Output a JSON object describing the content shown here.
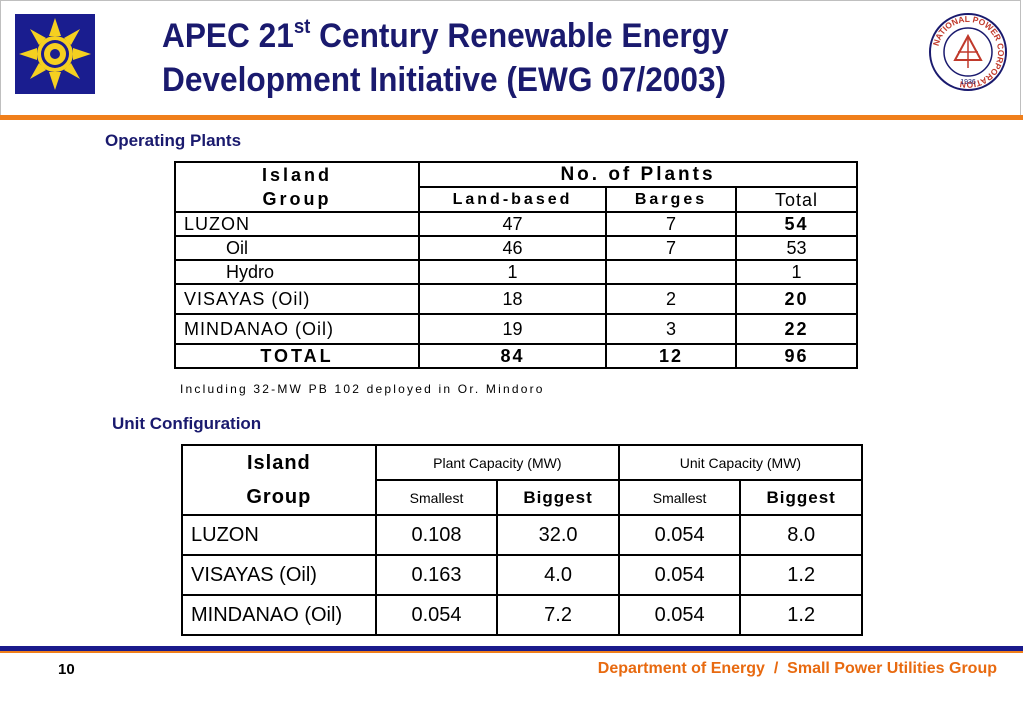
{
  "header": {
    "title_line1_pre": "APEC 21",
    "title_line1_sup": "st",
    "title_line1_post": " Century Renewable Energy",
    "title_line2": "Development Initiative (EWG 07/2003)",
    "left_logo": "department-of-energy-seal",
    "right_logo": "national-power-corporation-logo",
    "right_logo_text": "NATIONAL POWER CORPORATION",
    "right_logo_year": "1936",
    "colors": {
      "title": "#1a1a6e",
      "accent_orange": "#f07f1b",
      "accent_navy": "#1a1a8c",
      "footer": "#e86a10"
    }
  },
  "operating_plants": {
    "label": "Operating Plants",
    "headers": {
      "island_group_1": "Island",
      "island_group_2": "Group",
      "no_of_plants": "No. of Plants",
      "land_based": "Land-based",
      "barges": "Barges",
      "total": "Total"
    },
    "rows": [
      {
        "group": "LUZON",
        "land": "47",
        "barges": "7",
        "total": "54",
        "indent": false,
        "bold_total": true
      },
      {
        "group": "Oil",
        "land": "46",
        "barges": "7",
        "total": "53",
        "indent": true,
        "bold_total": false
      },
      {
        "group": "Hydro",
        "land": "1",
        "barges": "",
        "total": "1",
        "indent": true,
        "bold_total": false
      },
      {
        "group": "VISAYAS (Oil)",
        "land": "18",
        "barges": "2",
        "total": "20",
        "indent": false,
        "bold_total": true
      },
      {
        "group": "MINDANAO (Oil)",
        "land": "19",
        "barges": "3",
        "total": "22",
        "indent": false,
        "bold_total": true
      }
    ],
    "total_row": {
      "group": "TOTAL",
      "land": "84",
      "barges": "12",
      "total": "96"
    },
    "footnote": "Including 32-MW PB 102 deployed in Or. Mindoro"
  },
  "unit_configuration": {
    "label": "Unit Configuration",
    "headers": {
      "island_group_1": "Island",
      "island_group_2": "Group",
      "plant_capacity": "Plant Capacity (MW)",
      "unit_capacity": "Unit Capacity (MW)",
      "smallest": "Smallest",
      "biggest": "Biggest"
    },
    "rows": [
      {
        "group": "LUZON",
        "plant_smallest": "0.108",
        "plant_biggest": "32.0",
        "unit_smallest": "0.054",
        "unit_biggest": "8.0"
      },
      {
        "group": "VISAYAS (Oil)",
        "plant_smallest": "0.163",
        "plant_biggest": "4.0",
        "unit_smallest": "0.054",
        "unit_biggest": "1.2"
      },
      {
        "group": "MINDANAO (Oil)",
        "plant_smallest": "0.054",
        "plant_biggest": "7.2",
        "unit_smallest": "0.054",
        "unit_biggest": "1.2"
      }
    ]
  },
  "footer": {
    "page_number": "10",
    "org": "Department of Energy",
    "separator": "/",
    "group": "Small Power Utilities Group"
  }
}
